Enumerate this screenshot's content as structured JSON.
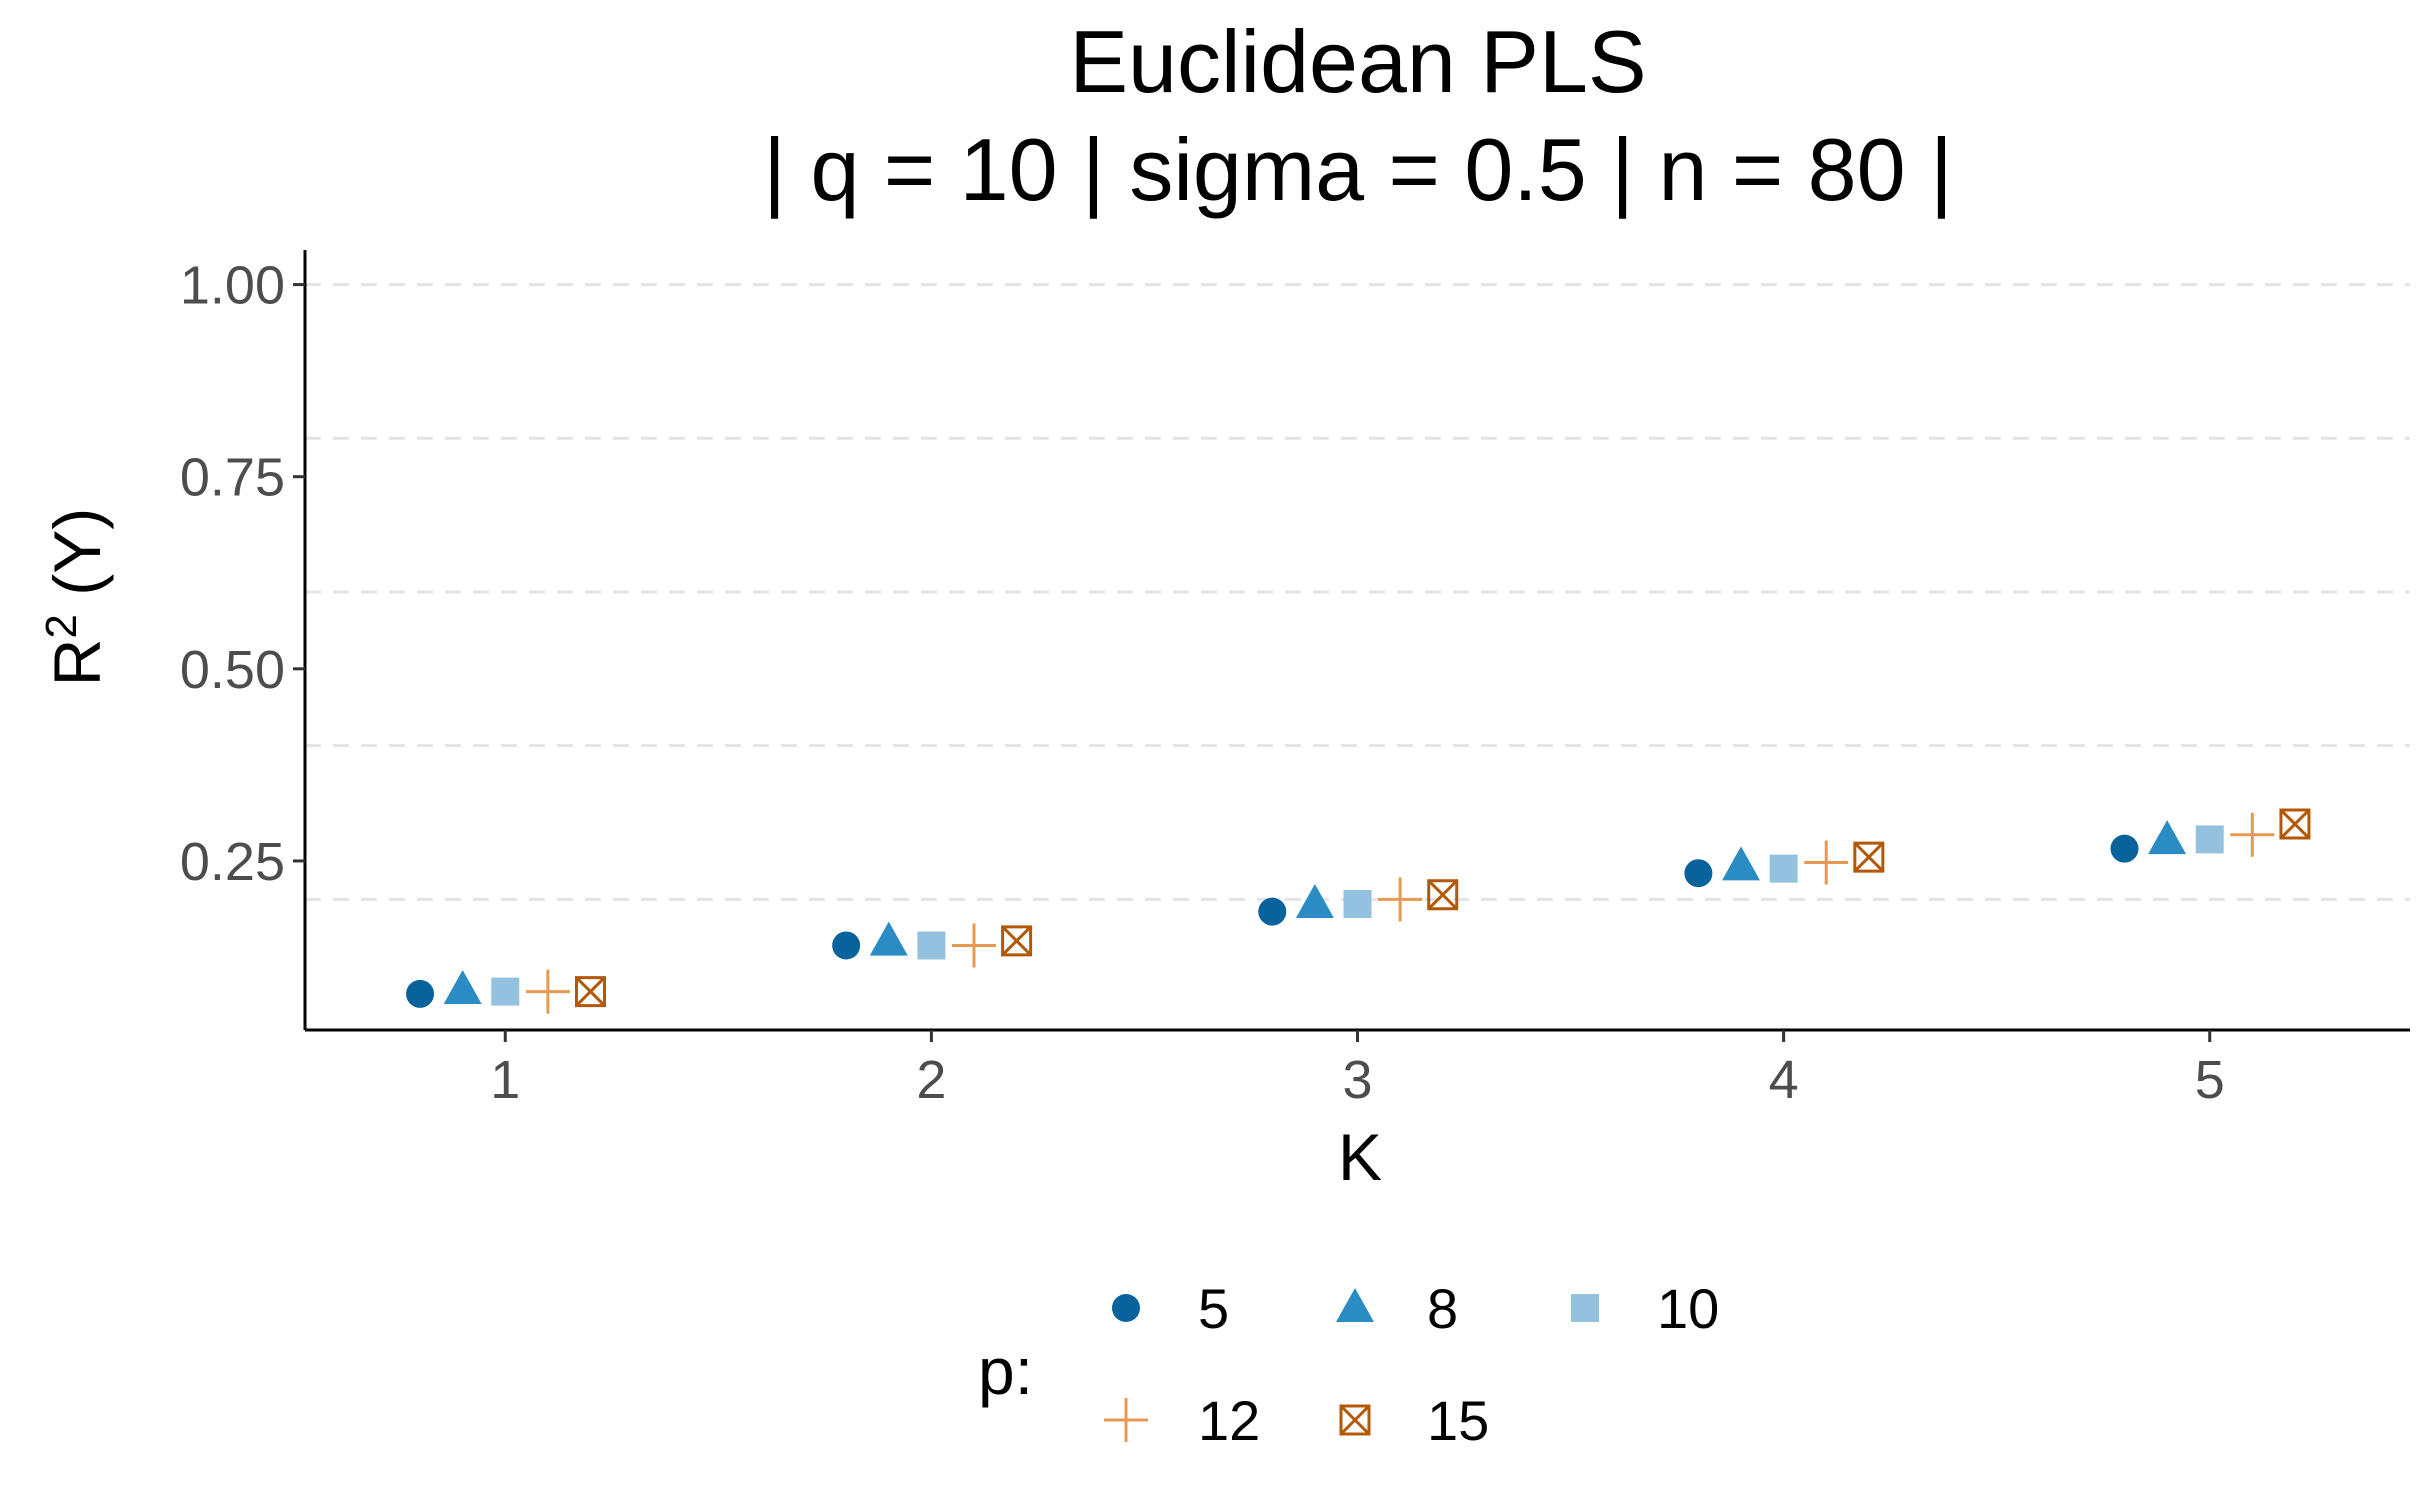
{
  "chart_data": {
    "type": "scatter",
    "title": "Euclidean PLS",
    "subtitle": "| q = 10 | sigma = 0.5 | n = 80 |",
    "xlabel": "K",
    "ylabel_base": "R",
    "ylabel_sup": "2",
    "ylabel_rest": " (Y)",
    "x_categories": [
      "1",
      "2",
      "3",
      "4",
      "5"
    ],
    "xlim": [
      0.53,
      5.47
    ],
    "ylim": [
      0.03,
      1.045
    ],
    "y_ticks": [
      0.25,
      0.5,
      0.75,
      1.0
    ],
    "y_tick_labels": [
      "0.25",
      "0.50",
      "0.75",
      "1.00"
    ],
    "y_grid_dashed": [
      0.2,
      0.4,
      0.6,
      0.8,
      1.0
    ],
    "grid": "horizontal dashed",
    "legend_title": "p:",
    "legend_position": "bottom",
    "series": [
      {
        "name": "5",
        "shape": "circle",
        "color": "#08639C",
        "dodge": -0.2,
        "values": [
          0.077,
          0.14,
          0.184,
          0.234,
          0.266
        ]
      },
      {
        "name": "8",
        "shape": "triangle",
        "color": "#2B8CC4",
        "dodge": -0.1,
        "values": [
          0.082,
          0.145,
          0.194,
          0.243,
          0.277
        ]
      },
      {
        "name": "10",
        "shape": "square",
        "color": "#94C1DE",
        "dodge": 0.0,
        "values": [
          0.08,
          0.14,
          0.194,
          0.24,
          0.278
        ]
      },
      {
        "name": "12",
        "shape": "plus",
        "color": "#E69A50",
        "dodge": 0.1,
        "values": [
          0.08,
          0.14,
          0.2,
          0.248,
          0.284
        ]
      },
      {
        "name": "15",
        "shape": "square-x",
        "color": "#B35806",
        "dodge": 0.2,
        "values": [
          0.08,
          0.146,
          0.206,
          0.255,
          0.298
        ]
      }
    ]
  }
}
